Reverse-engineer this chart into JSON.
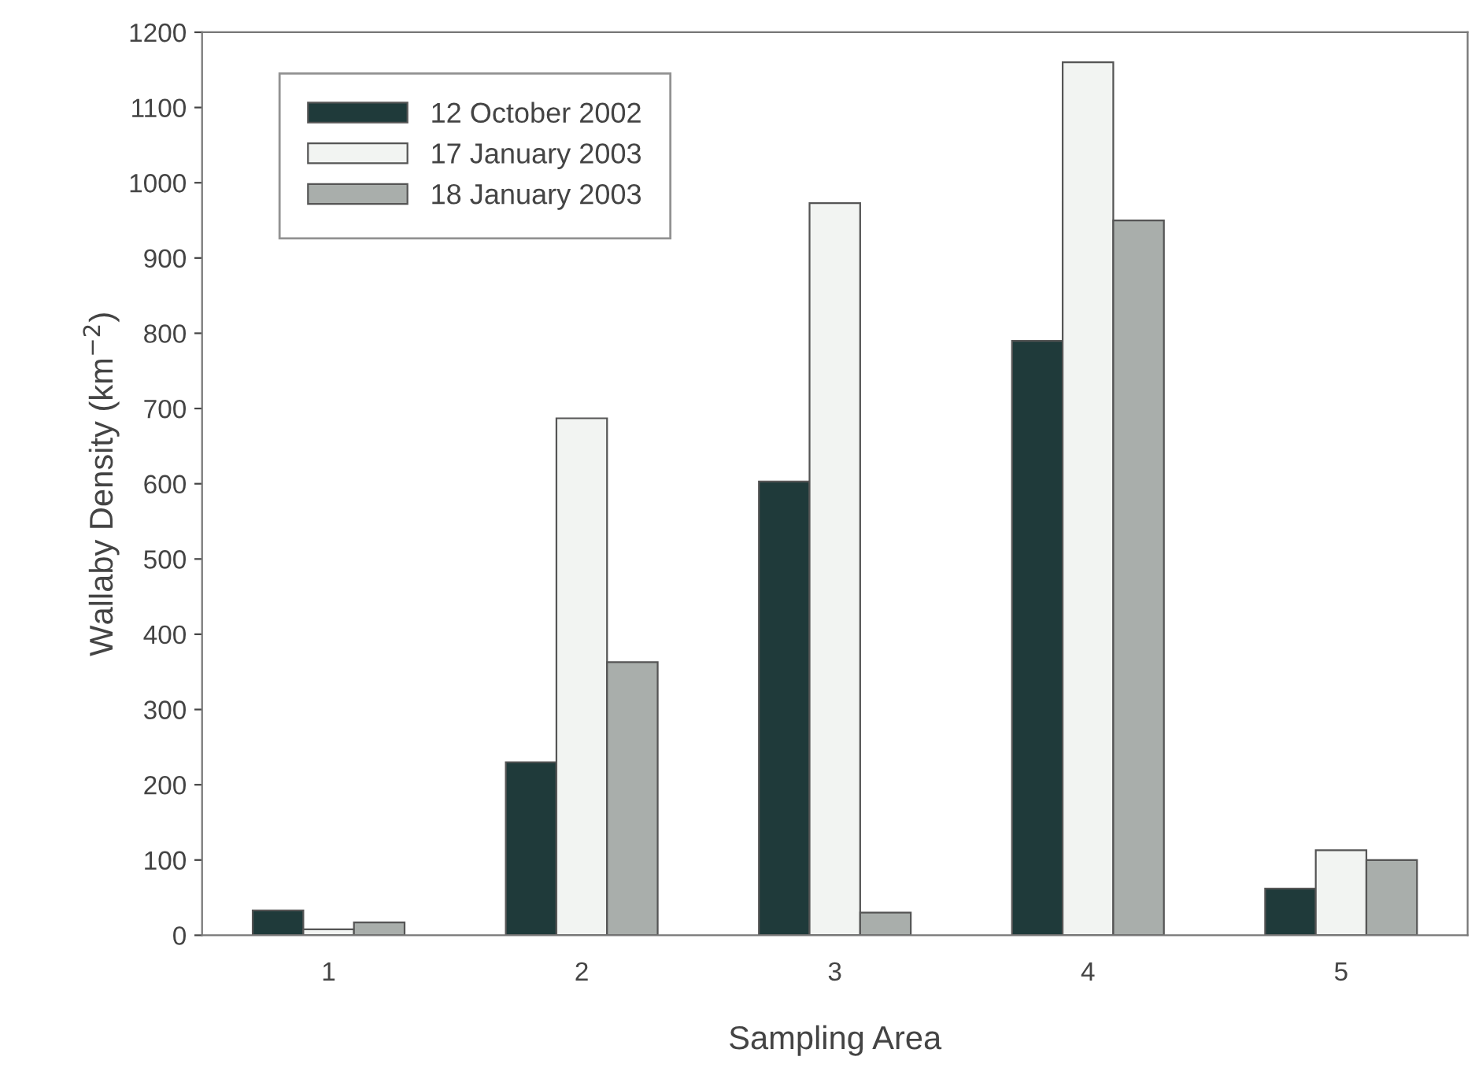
{
  "chart_data": {
    "type": "bar",
    "xlabel": "Sampling Area",
    "ylabel": "Wallaby Density (km$^{−2}$)",
    "categories": [
      "1",
      "2",
      "3",
      "4",
      "5"
    ],
    "series": [
      {
        "name": "12 October 2002",
        "color": "#1f3a3a",
        "values": [
          33,
          230,
          603,
          790,
          62
        ]
      },
      {
        "name": "17 January 2003",
        "color": "#f2f4f2",
        "values": [
          8,
          687,
          973,
          1160,
          113
        ]
      },
      {
        "name": "18 January 2003",
        "color": "#a9aeab",
        "values": [
          17,
          363,
          30,
          950,
          100
        ]
      }
    ],
    "ylim": [
      0,
      1200
    ],
    "yticks": [
      0,
      100,
      200,
      300,
      400,
      500,
      600,
      700,
      800,
      900,
      1000,
      1100,
      1200
    ],
    "grid": false,
    "legend": "top left"
  }
}
